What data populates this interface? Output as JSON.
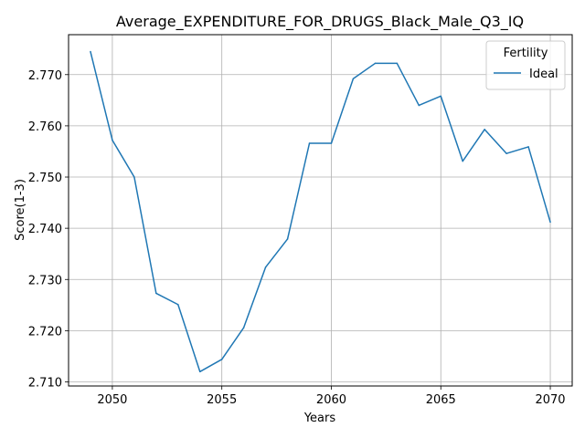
{
  "chart_data": {
    "type": "line",
    "title": "Average_EXPENDITURE_FOR_DRUGS_Black_Male_Q3_IQ",
    "xlabel": "Years",
    "ylabel": "Score(1-3)",
    "xlim": [
      2048,
      2071
    ],
    "ylim": [
      2.7092,
      2.7778
    ],
    "x_ticks": [
      2050,
      2055,
      2060,
      2065,
      2070
    ],
    "y_ticks": [
      2.71,
      2.72,
      2.73,
      2.74,
      2.75,
      2.76,
      2.77
    ],
    "y_tick_labels": [
      "2.710",
      "2.720",
      "2.730",
      "2.740",
      "2.750",
      "2.760",
      "2.770"
    ],
    "grid": true,
    "legend": {
      "title": "Fertility",
      "placement": "top-right"
    },
    "series": [
      {
        "name": "Ideal",
        "color": "#1f77b4",
        "x": [
          2049,
          2050,
          2051,
          2052,
          2053,
          2054,
          2055,
          2056,
          2057,
          2058,
          2059,
          2060,
          2061,
          2062,
          2063,
          2064,
          2065,
          2066,
          2067,
          2068,
          2069,
          2070
        ],
        "y": [
          2.7745,
          2.7572,
          2.75,
          2.7273,
          2.7251,
          2.712,
          2.7144,
          2.7206,
          2.7324,
          2.7379,
          2.7566,
          2.7566,
          2.7692,
          2.7722,
          2.7722,
          2.764,
          2.7658,
          2.7531,
          2.7593,
          2.7546,
          2.7559,
          2.7412
        ]
      }
    ]
  }
}
